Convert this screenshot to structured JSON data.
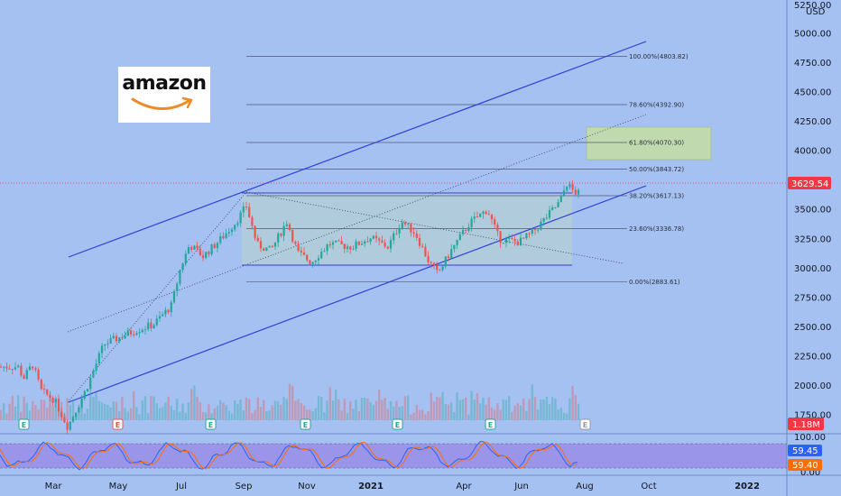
{
  "logo": {
    "text": "amazon"
  },
  "price_axis": {
    "currency": "USD",
    "top_partial": "5250.00",
    "ticks": [
      "5000.00",
      "4750.00",
      "4500.00",
      "4250.00",
      "4000.00",
      "3750.00",
      "3500.00",
      "3250.00",
      "3000.00",
      "2750.00",
      "2500.00",
      "2250.00",
      "2000.00",
      "1750.00"
    ],
    "last_price": "3629.54",
    "volume_label": "1.18M"
  },
  "oscillator_axis": {
    "ticks": [
      "100.00",
      "0.00"
    ],
    "value_a": "59.45",
    "value_b": "59.40"
  },
  "time_axis": [
    "Mar",
    "May",
    "Jul",
    "Sep",
    "Nov",
    "2021",
    "Apr",
    "Jun",
    "Aug",
    "Oct",
    "2022"
  ],
  "fib_levels": [
    {
      "label": "100.00%(4803.82)",
      "price": 4803.82
    },
    {
      "label": "78.60%(4392.90)",
      "price": 4392.9
    },
    {
      "label": "61.80%(4070.30)",
      "price": 4070.3
    },
    {
      "label": "50.00%(3843.72)",
      "price": 3843.72
    },
    {
      "label": "38.20%(3617.13)",
      "price": 3617.13
    },
    {
      "label": "23.60%(3336.78)",
      "price": 3336.78
    },
    {
      "label": "0.00%(2883.61)",
      "price": 2883.61
    }
  ],
  "event_markers": [
    {
      "letter": "E",
      "color": "#26a69a"
    },
    {
      "letter": "E",
      "color": "#ef5350"
    },
    {
      "letter": "E",
      "color": "#26a69a"
    },
    {
      "letter": "E",
      "color": "#26a69a"
    },
    {
      "letter": "E",
      "color": "#26a69a"
    },
    {
      "letter": "E",
      "color": "#26a69a"
    },
    {
      "letter": "E",
      "color": "#9598a1"
    }
  ],
  "colors": {
    "background": "#a4c1f2",
    "up": "#26a69a",
    "down": "#ef5350",
    "channel": "#2f3fd6",
    "price_tag": "#f23645",
    "oscillator_bg": "#9a8de8",
    "osc_a": "#2962ff",
    "osc_b": "#ff6d00"
  },
  "chart_data": {
    "type": "candlestick",
    "symbol": "AMZN",
    "currency": "USD",
    "y_range": [
      1500,
      5300
    ],
    "last_price": 3629.54,
    "monthly_closes": [
      {
        "x": "Feb 2020",
        "y": 2008
      },
      {
        "x": "Mar 2020",
        "y": 1950
      },
      {
        "x": "Apr 2020",
        "y": 2474
      },
      {
        "x": "May 2020",
        "y": 2442
      },
      {
        "x": "Jun 2020",
        "y": 2758
      },
      {
        "x": "Jul 2020",
        "y": 3164
      },
      {
        "x": "Aug 2020",
        "y": 3450
      },
      {
        "x": "Sep 2020",
        "y": 3148
      },
      {
        "x": "Oct 2020",
        "y": 3036
      },
      {
        "x": "Nov 2020",
        "y": 3168
      },
      {
        "x": "Dec 2020",
        "y": 3256
      },
      {
        "x": "Jan 2021",
        "y": 3206
      },
      {
        "x": "Feb 2021",
        "y": 3092
      },
      {
        "x": "Mar 2021",
        "y": 3094
      },
      {
        "x": "Apr 2021",
        "y": 3467
      },
      {
        "x": "May 2021",
        "y": 3223
      },
      {
        "x": "Jun 2021",
        "y": 3440
      },
      {
        "x": "Jul 2021",
        "y": 3629.54
      }
    ],
    "fibonacci": [
      4803.82,
      4392.9,
      4070.3,
      3843.72,
      3617.13,
      3336.78,
      2883.61
    ],
    "range_box": [
      2883.61,
      3540
    ],
    "oscillator": {
      "range": [
        0,
        100
      ],
      "values": [
        59.45,
        59.4
      ]
    },
    "volume_last": "1.18M"
  }
}
